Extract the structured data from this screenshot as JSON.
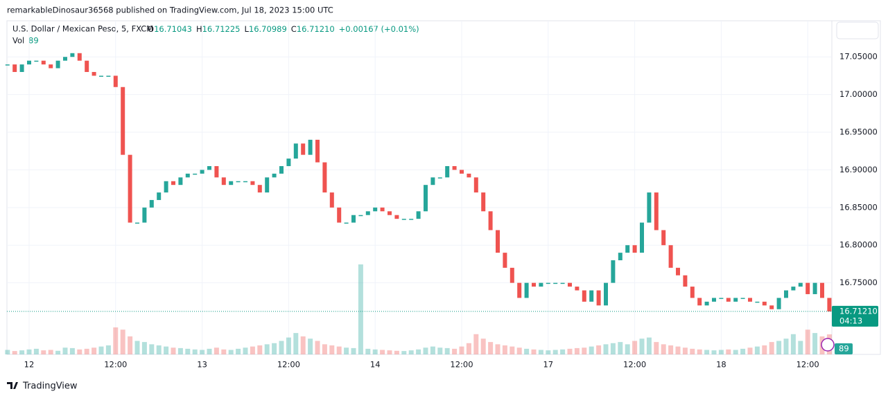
{
  "header": {
    "publisher": "remarkableDinosaur36568 published on TradingView.com, Jul 18, 2023 15:00 UTC",
    "symbol": "U.S. Dollar / Mexican Peso, 5, FXCM",
    "ohlc": [
      {
        "label": "O",
        "value": "16.71043"
      },
      {
        "label": "H",
        "value": "16.71225"
      },
      {
        "label": "L",
        "value": "16.70989"
      },
      {
        "label": "C",
        "value": "16.71210"
      }
    ],
    "change": "+0.00167 (+0.01%)",
    "volume_label": "Vol",
    "volume_value": "89"
  },
  "chart_data": {
    "type": "candle-close",
    "categories": [
      null,
      null,
      null,
      "12",
      null,
      null,
      null,
      null,
      null,
      null,
      null,
      null,
      null,
      null,
      null,
      "12:00",
      null,
      null,
      null,
      null,
      null,
      null,
      null,
      null,
      null,
      null,
      null,
      "13",
      null,
      null,
      null,
      null,
      null,
      null,
      null,
      null,
      null,
      null,
      null,
      "12:00",
      null,
      null,
      null,
      null,
      null,
      null,
      null,
      null,
      null,
      null,
      null,
      "14",
      null,
      null,
      null,
      null,
      null,
      null,
      null,
      null,
      null,
      null,
      null,
      "12:00",
      null,
      null,
      null,
      null,
      null,
      null,
      null,
      null,
      null,
      null,
      null,
      "17",
      null,
      null,
      null,
      null,
      null,
      null,
      null,
      null,
      null,
      null,
      null,
      "12:00",
      null,
      null,
      null,
      null,
      null,
      null,
      null,
      null,
      null,
      null,
      null,
      "18",
      null,
      null,
      null,
      null,
      null,
      null,
      null,
      null,
      null,
      null,
      null,
      "12:00",
      null,
      null,
      null
    ],
    "series": [
      {
        "name": "Close",
        "up_color": "#26a69a",
        "down_color": "#ef5350",
        "values": [
          17.04,
          17.03,
          17.04,
          17.045,
          17.045,
          17.04,
          17.035,
          17.045,
          17.05,
          17.055,
          17.045,
          17.03,
          17.025,
          17.025,
          17.025,
          17.01,
          16.92,
          16.83,
          16.83,
          16.85,
          16.86,
          16.87,
          16.885,
          16.88,
          16.89,
          16.895,
          16.895,
          16.9,
          16.905,
          16.89,
          16.88,
          16.885,
          16.885,
          16.885,
          16.88,
          16.87,
          16.89,
          16.895,
          16.905,
          16.915,
          16.935,
          16.92,
          16.94,
          16.91,
          16.87,
          16.85,
          16.83,
          16.83,
          16.84,
          16.84,
          16.845,
          16.85,
          16.845,
          16.84,
          16.835,
          16.835,
          16.835,
          16.845,
          16.88,
          16.89,
          16.89,
          16.905,
          16.9,
          16.895,
          16.89,
          16.87,
          16.845,
          16.82,
          16.79,
          16.77,
          16.75,
          16.73,
          16.75,
          16.745,
          16.75,
          16.75,
          16.75,
          16.75,
          16.745,
          16.74,
          16.725,
          16.74,
          16.72,
          16.75,
          16.78,
          16.79,
          16.8,
          16.79,
          16.83,
          16.87,
          16.82,
          16.8,
          16.77,
          16.76,
          16.745,
          16.73,
          16.72,
          16.725,
          16.73,
          16.73,
          16.725,
          16.73,
          16.73,
          16.725,
          16.725,
          16.72,
          16.715,
          16.73,
          16.74,
          16.745,
          16.75,
          16.735,
          16.75,
          16.73,
          16.712
        ]
      },
      {
        "name": "Vol",
        "axis": "volume",
        "values": [
          20,
          15,
          18,
          22,
          25,
          18,
          20,
          16,
          30,
          28,
          22,
          25,
          30,
          35,
          40,
          120,
          110,
          80,
          60,
          55,
          45,
          40,
          35,
          30,
          28,
          25,
          22,
          20,
          25,
          30,
          22,
          20,
          25,
          30,
          35,
          40,
          45,
          50,
          60,
          75,
          95,
          80,
          70,
          60,
          45,
          40,
          35,
          30,
          28,
          400,
          25,
          22,
          20,
          18,
          16,
          15,
          18,
          22,
          30,
          35,
          30,
          28,
          25,
          35,
          50,
          90,
          70,
          55,
          45,
          40,
          35,
          30,
          25,
          22,
          20,
          18,
          20,
          22,
          25,
          28,
          30,
          35,
          40,
          45,
          50,
          55,
          45,
          60,
          70,
          75,
          55,
          45,
          40,
          35,
          30,
          25,
          22,
          20,
          18,
          20,
          22,
          20,
          25,
          30,
          35,
          40,
          55,
          60,
          70,
          90,
          60,
          110,
          95,
          80,
          89
        ]
      }
    ],
    "ylim": [
      16.655,
      17.098
    ],
    "yticks": [
      {
        "value": 16.75,
        "label": "16.75000"
      },
      {
        "value": 16.8,
        "label": "16.80000"
      },
      {
        "value": 16.85,
        "label": "16.85000"
      },
      {
        "value": 16.9,
        "label": "16.90000"
      },
      {
        "value": 16.95,
        "label": "16.95000"
      },
      {
        "value": 17.0,
        "label": "17.00000"
      },
      {
        "value": 17.05,
        "label": "17.05000"
      }
    ],
    "volume_lim": [
      0,
      400
    ],
    "grid": true,
    "last_price": {
      "value": 16.7121,
      "label": "16.71210"
    },
    "countdown": "04:13",
    "last_volume": {
      "value": 89,
      "label": "89"
    }
  },
  "footer": {
    "brand": "TradingView"
  }
}
